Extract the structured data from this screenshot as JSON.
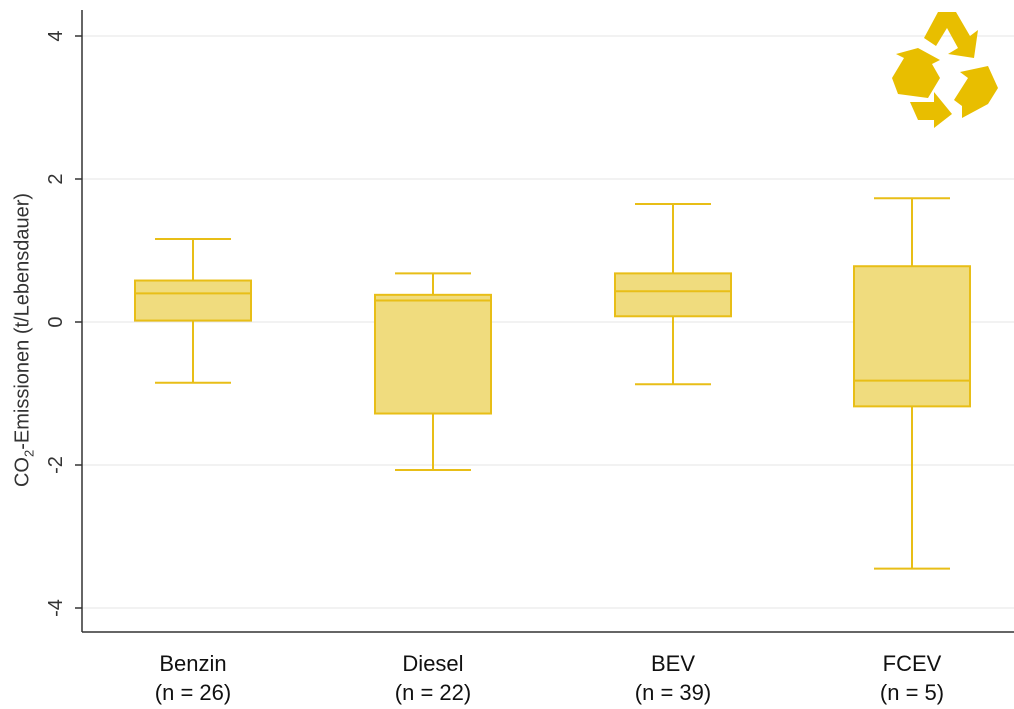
{
  "chart_data": {
    "type": "box",
    "ylabel": {
      "prefix": "CO",
      "sub": "2",
      "suffix": "-Emissionen (t/Lebensdauer)"
    },
    "ylim": [
      -4.4,
      4.4
    ],
    "yticks": [
      -4,
      -2,
      0,
      2,
      4
    ],
    "ytick_labels": [
      "-4",
      "-2",
      "0",
      "2",
      "4"
    ],
    "grid": true,
    "categories": [
      "Benzin",
      "Diesel",
      "BEV",
      "FCEV"
    ],
    "category_sublabels": [
      "(n = 26)",
      "(n = 22)",
      "(n = 39)",
      "(n = 5)"
    ],
    "boxes": [
      {
        "name": "Benzin",
        "whisker_low": -0.85,
        "q1": 0.02,
        "median": 0.4,
        "q3": 0.58,
        "whisker_high": 1.16
      },
      {
        "name": "Diesel",
        "whisker_low": -2.07,
        "q1": -1.28,
        "median": 0.3,
        "q3": 0.38,
        "whisker_high": 0.68
      },
      {
        "name": "BEV",
        "whisker_low": -0.87,
        "q1": 0.08,
        "median": 0.43,
        "q3": 0.68,
        "whisker_high": 1.65
      },
      {
        "name": "FCEV",
        "whisker_low": -3.45,
        "q1": -1.18,
        "median": -0.82,
        "q3": 0.78,
        "whisker_high": 1.73
      }
    ],
    "colors": {
      "fill": "#f0dc7e",
      "stroke": "#e8be17",
      "grid": "#e6e6e6",
      "axis": "#333333"
    }
  },
  "logo": {
    "name": "recycle-icon",
    "color": "#e8be00"
  }
}
